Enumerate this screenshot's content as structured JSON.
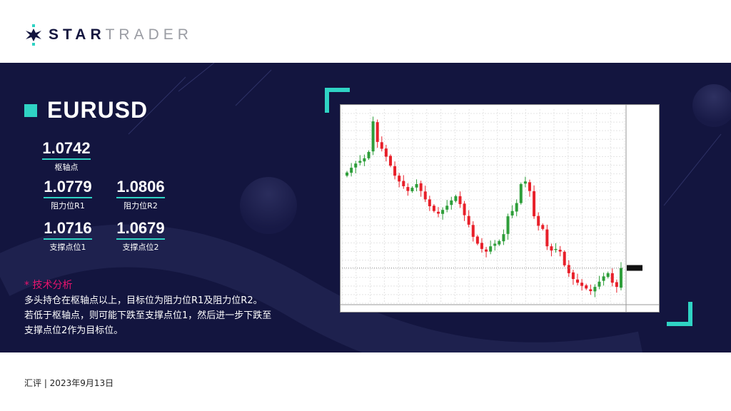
{
  "logo": {
    "text_bold": "STAR",
    "text_light": "TRADER"
  },
  "symbol": "EURUSD",
  "levels": {
    "pivot": {
      "value": "1.0742",
      "label": "枢轴点"
    },
    "r1": {
      "value": "1.0779",
      "label": "阻力位R1"
    },
    "r2": {
      "value": "1.0806",
      "label": "阻力位R2"
    },
    "s1": {
      "value": "1.0716",
      "label": "支撑点位1"
    },
    "s2": {
      "value": "1.0679",
      "label": "支撑点位2"
    }
  },
  "analysis": {
    "heading": "* 技术分析",
    "lines": [
      "多头持仓在枢轴点以上，目标位为阻力位R1及阻力位R2。",
      "若低于枢轴点，则可能下跌至支撑点位1，然后进一步下跌至",
      "支撑点位2作为目标位。"
    ]
  },
  "footer": "汇评 | 2023年9月13日",
  "colors": {
    "background": "#13153f",
    "accent": "#2fd3c4",
    "highlight": "#e8146e",
    "up": "#2e9e3a",
    "down": "#e8202a"
  },
  "chart_data": {
    "type": "candlestick",
    "ylim": [
      1.067,
      1.103
    ],
    "grid": true,
    "closes": [
      1.0918,
      1.0927,
      1.0935,
      1.094,
      1.0945,
      1.0957,
      1.1015,
      1.0976,
      1.0963,
      1.0948,
      1.0931,
      1.0912,
      1.0901,
      1.0892,
      1.0883,
      1.0889,
      1.0896,
      1.0883,
      1.0867,
      1.0854,
      1.0845,
      1.084,
      1.0847,
      1.0855,
      1.0865,
      1.0873,
      1.0858,
      1.0837,
      1.0819,
      1.0796,
      1.0783,
      1.0773,
      1.0768,
      1.0778,
      1.0783,
      1.0788,
      1.0801,
      1.0835,
      1.0845,
      1.086,
      1.0896,
      1.0901,
      1.0883,
      1.0835,
      1.0817,
      1.0811,
      1.0778,
      1.077,
      1.0773,
      1.0768,
      1.0742,
      1.0727,
      1.0716,
      1.0709,
      1.0703,
      1.0698,
      1.0693,
      1.0701,
      1.0711,
      1.0721,
      1.0727,
      1.0709,
      1.0701,
      1.0737
    ]
  }
}
